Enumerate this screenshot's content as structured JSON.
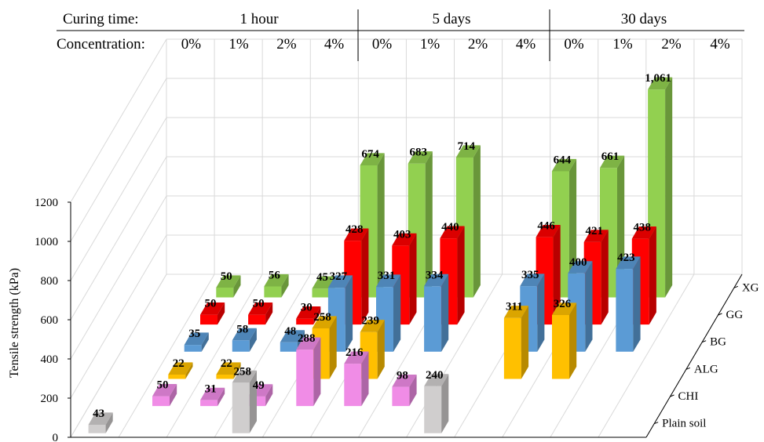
{
  "chart_data": {
    "type": "bar",
    "subtype": "3d-grouped-column",
    "ylabel": "Tensile strength (kPa)",
    "ylim": [
      0,
      1200
    ],
    "yticks": [
      0,
      200,
      400,
      600,
      800,
      1000,
      1200
    ],
    "gridlines": true,
    "header": {
      "curing_label": "Curing time:",
      "concentration_label": "Concentration:",
      "curing_times": [
        "1 hour",
        "5 days",
        "30 days"
      ],
      "concentrations": [
        "0%",
        "1%",
        "2%",
        "4%"
      ]
    },
    "categories": [
      "1 hour 0%",
      "1 hour 1%",
      "1 hour 2%",
      "1 hour 4%",
      "5 days 0%",
      "5 days 1%",
      "5 days 2%",
      "5 days 4%",
      "30 days 0%",
      "30 days 1%",
      "30 days 2%",
      "30 days 4%"
    ],
    "series": [
      {
        "name": "Plain soil",
        "color": "#d0cece",
        "values": [
          43,
          null,
          null,
          258,
          null,
          null,
          null,
          240,
          null,
          null,
          null,
          null
        ]
      },
      {
        "name": "CHI",
        "color": "#f08ce6",
        "values": [
          null,
          50,
          31,
          49,
          288,
          216,
          98,
          null,
          null,
          null,
          null,
          null
        ]
      },
      {
        "name": "ALG",
        "color": "#ffc000",
        "values": [
          null,
          22,
          22,
          null,
          258,
          239,
          null,
          null,
          311,
          326,
          null,
          null
        ]
      },
      {
        "name": "BG",
        "color": "#5b9bd5",
        "values": [
          null,
          35,
          58,
          48,
          327,
          331,
          334,
          null,
          335,
          400,
          423,
          null
        ]
      },
      {
        "name": "GG",
        "color": "#ff0000",
        "values": [
          null,
          50,
          50,
          30,
          428,
          403,
          440,
          null,
          446,
          421,
          438,
          null
        ]
      },
      {
        "name": "XG",
        "color": "#92d050",
        "values": [
          null,
          50,
          56,
          45,
          674,
          683,
          714,
          null,
          644,
          661,
          1061,
          null
        ]
      }
    ],
    "value_labels": {
      "Plain soil": [
        "43",
        null,
        null,
        "258",
        null,
        null,
        null,
        "240",
        null,
        null,
        null,
        null
      ],
      "CHI": [
        null,
        "50",
        "31",
        "49",
        "288",
        "216",
        "98",
        null,
        null,
        null,
        null,
        null
      ],
      "ALG": [
        null,
        "22",
        "22",
        null,
        "258",
        "239",
        null,
        null,
        "311",
        "326",
        null,
        null
      ],
      "BG": [
        null,
        "35",
        "58",
        "48",
        "327",
        "331",
        "334",
        null,
        "335",
        "400",
        "423",
        null
      ],
      "GG": [
        null,
        "50",
        "50",
        "30",
        "428",
        "403",
        "440",
        null,
        "446",
        "421",
        "438",
        null
      ],
      "XG": [
        null,
        "50",
        "56",
        "45",
        "674",
        "683",
        "714",
        null,
        "644",
        "661",
        "1,061",
        null
      ]
    }
  }
}
